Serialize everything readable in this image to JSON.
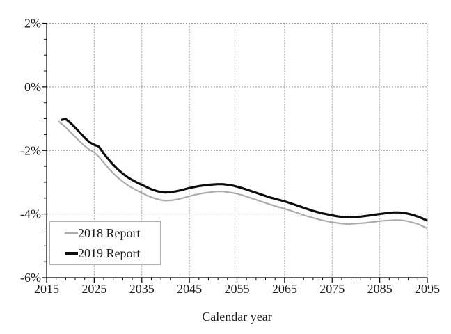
{
  "page": {
    "background": "#ffffff"
  },
  "chart_data": {
    "type": "line",
    "title": "",
    "xlabel": "Calendar year",
    "ylabel": "",
    "xlim": [
      2015,
      2095
    ],
    "ylim": [
      -6,
      2
    ],
    "x_major_ticks": [
      2015,
      2025,
      2035,
      2045,
      2055,
      2065,
      2075,
      2085,
      2095
    ],
    "x_tick_labels": [
      "2015",
      "2025",
      "2035",
      "2045",
      "2055",
      "2065",
      "2075",
      "2085",
      "2095"
    ],
    "x_minor_tick_step": 2,
    "y_major_ticks": [
      2,
      0,
      -2,
      -4,
      -6
    ],
    "y_tick_labels": [
      "2%",
      "0%",
      "-2%",
      "-4%",
      "-6%"
    ],
    "y_minor_tick_step": 0.5,
    "grid": {
      "vertical_at": [
        2025,
        2035,
        2045,
        2055,
        2065,
        2075,
        2085,
        2095
      ],
      "horizontal_at": [
        2,
        0,
        -2,
        -4
      ],
      "style": "dotted",
      "color": "#999999"
    },
    "axis_color": "#000000",
    "legend": {
      "position": "lower-left",
      "border_color": "#b0b0b0",
      "items": [
        {
          "label": "2018 Report",
          "color": "#ababab",
          "line_width": 2.2
        },
        {
          "label": "2019 Report",
          "color": "#0d0d0d",
          "line_width": 3.2
        }
      ]
    },
    "series": [
      {
        "name": "2018 Report",
        "color": "#ababab",
        "line_width": 2.2,
        "points": [
          [
            2017.5,
            -1.08
          ],
          [
            2018,
            -1.14
          ],
          [
            2019,
            -1.27
          ],
          [
            2020,
            -1.42
          ],
          [
            2021,
            -1.57
          ],
          [
            2022,
            -1.72
          ],
          [
            2023,
            -1.86
          ],
          [
            2024,
            -1.97
          ],
          [
            2025,
            -2.06
          ],
          [
            2026,
            -2.2
          ],
          [
            2027,
            -2.38
          ],
          [
            2028,
            -2.56
          ],
          [
            2029,
            -2.72
          ],
          [
            2030,
            -2.86
          ],
          [
            2031,
            -2.98
          ],
          [
            2032,
            -3.09
          ],
          [
            2033,
            -3.18
          ],
          [
            2034,
            -3.26
          ],
          [
            2035,
            -3.33
          ],
          [
            2036,
            -3.41
          ],
          [
            2037,
            -3.47
          ],
          [
            2038,
            -3.52
          ],
          [
            2039,
            -3.56
          ],
          [
            2040,
            -3.58
          ],
          [
            2041,
            -3.57
          ],
          [
            2042,
            -3.55
          ],
          [
            2043,
            -3.52
          ],
          [
            2044,
            -3.48
          ],
          [
            2045,
            -3.44
          ],
          [
            2046,
            -3.4
          ],
          [
            2047,
            -3.37
          ],
          [
            2048,
            -3.34
          ],
          [
            2049,
            -3.32
          ],
          [
            2050,
            -3.3
          ],
          [
            2051,
            -3.29
          ],
          [
            2052,
            -3.29
          ],
          [
            2053,
            -3.31
          ],
          [
            2054,
            -3.33
          ],
          [
            2055,
            -3.36
          ],
          [
            2056,
            -3.4
          ],
          [
            2057,
            -3.45
          ],
          [
            2058,
            -3.5
          ],
          [
            2059,
            -3.55
          ],
          [
            2060,
            -3.6
          ],
          [
            2061,
            -3.65
          ],
          [
            2062,
            -3.7
          ],
          [
            2063,
            -3.75
          ],
          [
            2064,
            -3.79
          ],
          [
            2065,
            -3.83
          ],
          [
            2066,
            -3.88
          ],
          [
            2067,
            -3.93
          ],
          [
            2068,
            -3.98
          ],
          [
            2069,
            -4.03
          ],
          [
            2070,
            -4.08
          ],
          [
            2071,
            -4.12
          ],
          [
            2072,
            -4.16
          ],
          [
            2073,
            -4.2
          ],
          [
            2074,
            -4.23
          ],
          [
            2075,
            -4.26
          ],
          [
            2076,
            -4.28
          ],
          [
            2077,
            -4.3
          ],
          [
            2078,
            -4.31
          ],
          [
            2079,
            -4.31
          ],
          [
            2080,
            -4.3
          ],
          [
            2081,
            -4.29
          ],
          [
            2082,
            -4.28
          ],
          [
            2083,
            -4.26
          ],
          [
            2084,
            -4.24
          ],
          [
            2085,
            -4.22
          ],
          [
            2086,
            -4.21
          ],
          [
            2087,
            -4.2
          ],
          [
            2088,
            -4.19
          ],
          [
            2089,
            -4.19
          ],
          [
            2090,
            -4.2
          ],
          [
            2091,
            -4.23
          ],
          [
            2092,
            -4.27
          ],
          [
            2093,
            -4.31
          ],
          [
            2094,
            -4.38
          ],
          [
            2095,
            -4.45
          ]
        ]
      },
      {
        "name": "2019 Report",
        "color": "#0d0d0d",
        "line_width": 3.2,
        "points": [
          [
            2018,
            -1.04
          ],
          [
            2019,
            -1.01
          ],
          [
            2020,
            -1.13
          ],
          [
            2021,
            -1.28
          ],
          [
            2022,
            -1.44
          ],
          [
            2023,
            -1.6
          ],
          [
            2024,
            -1.74
          ],
          [
            2025,
            -1.82
          ],
          [
            2026,
            -1.88
          ],
          [
            2027,
            -2.1
          ],
          [
            2028,
            -2.28
          ],
          [
            2029,
            -2.45
          ],
          [
            2030,
            -2.6
          ],
          [
            2031,
            -2.73
          ],
          [
            2032,
            -2.84
          ],
          [
            2033,
            -2.93
          ],
          [
            2034,
            -3.01
          ],
          [
            2035,
            -3.08
          ],
          [
            2036,
            -3.15
          ],
          [
            2037,
            -3.22
          ],
          [
            2038,
            -3.27
          ],
          [
            2039,
            -3.31
          ],
          [
            2040,
            -3.32
          ],
          [
            2041,
            -3.31
          ],
          [
            2042,
            -3.29
          ],
          [
            2043,
            -3.26
          ],
          [
            2044,
            -3.22
          ],
          [
            2045,
            -3.18
          ],
          [
            2046,
            -3.15
          ],
          [
            2047,
            -3.12
          ],
          [
            2048,
            -3.1
          ],
          [
            2049,
            -3.08
          ],
          [
            2050,
            -3.07
          ],
          [
            2051,
            -3.06
          ],
          [
            2052,
            -3.06
          ],
          [
            2053,
            -3.08
          ],
          [
            2054,
            -3.1
          ],
          [
            2055,
            -3.14
          ],
          [
            2056,
            -3.18
          ],
          [
            2057,
            -3.23
          ],
          [
            2058,
            -3.28
          ],
          [
            2059,
            -3.33
          ],
          [
            2060,
            -3.38
          ],
          [
            2061,
            -3.43
          ],
          [
            2062,
            -3.48
          ],
          [
            2063,
            -3.52
          ],
          [
            2064,
            -3.56
          ],
          [
            2065,
            -3.6
          ],
          [
            2066,
            -3.65
          ],
          [
            2067,
            -3.7
          ],
          [
            2068,
            -3.75
          ],
          [
            2069,
            -3.8
          ],
          [
            2070,
            -3.85
          ],
          [
            2071,
            -3.9
          ],
          [
            2072,
            -3.94
          ],
          [
            2073,
            -3.98
          ],
          [
            2074,
            -4.01
          ],
          [
            2075,
            -4.04
          ],
          [
            2076,
            -4.07
          ],
          [
            2077,
            -4.09
          ],
          [
            2078,
            -4.1
          ],
          [
            2079,
            -4.1
          ],
          [
            2080,
            -4.09
          ],
          [
            2081,
            -4.08
          ],
          [
            2082,
            -4.06
          ],
          [
            2083,
            -4.04
          ],
          [
            2084,
            -4.02
          ],
          [
            2085,
            -4
          ],
          [
            2086,
            -3.98
          ],
          [
            2087,
            -3.96
          ],
          [
            2088,
            -3.95
          ],
          [
            2089,
            -3.95
          ],
          [
            2090,
            -3.96
          ],
          [
            2091,
            -3.99
          ],
          [
            2092,
            -4.03
          ],
          [
            2093,
            -4.08
          ],
          [
            2094,
            -4.14
          ],
          [
            2095,
            -4.21
          ]
        ]
      }
    ]
  }
}
